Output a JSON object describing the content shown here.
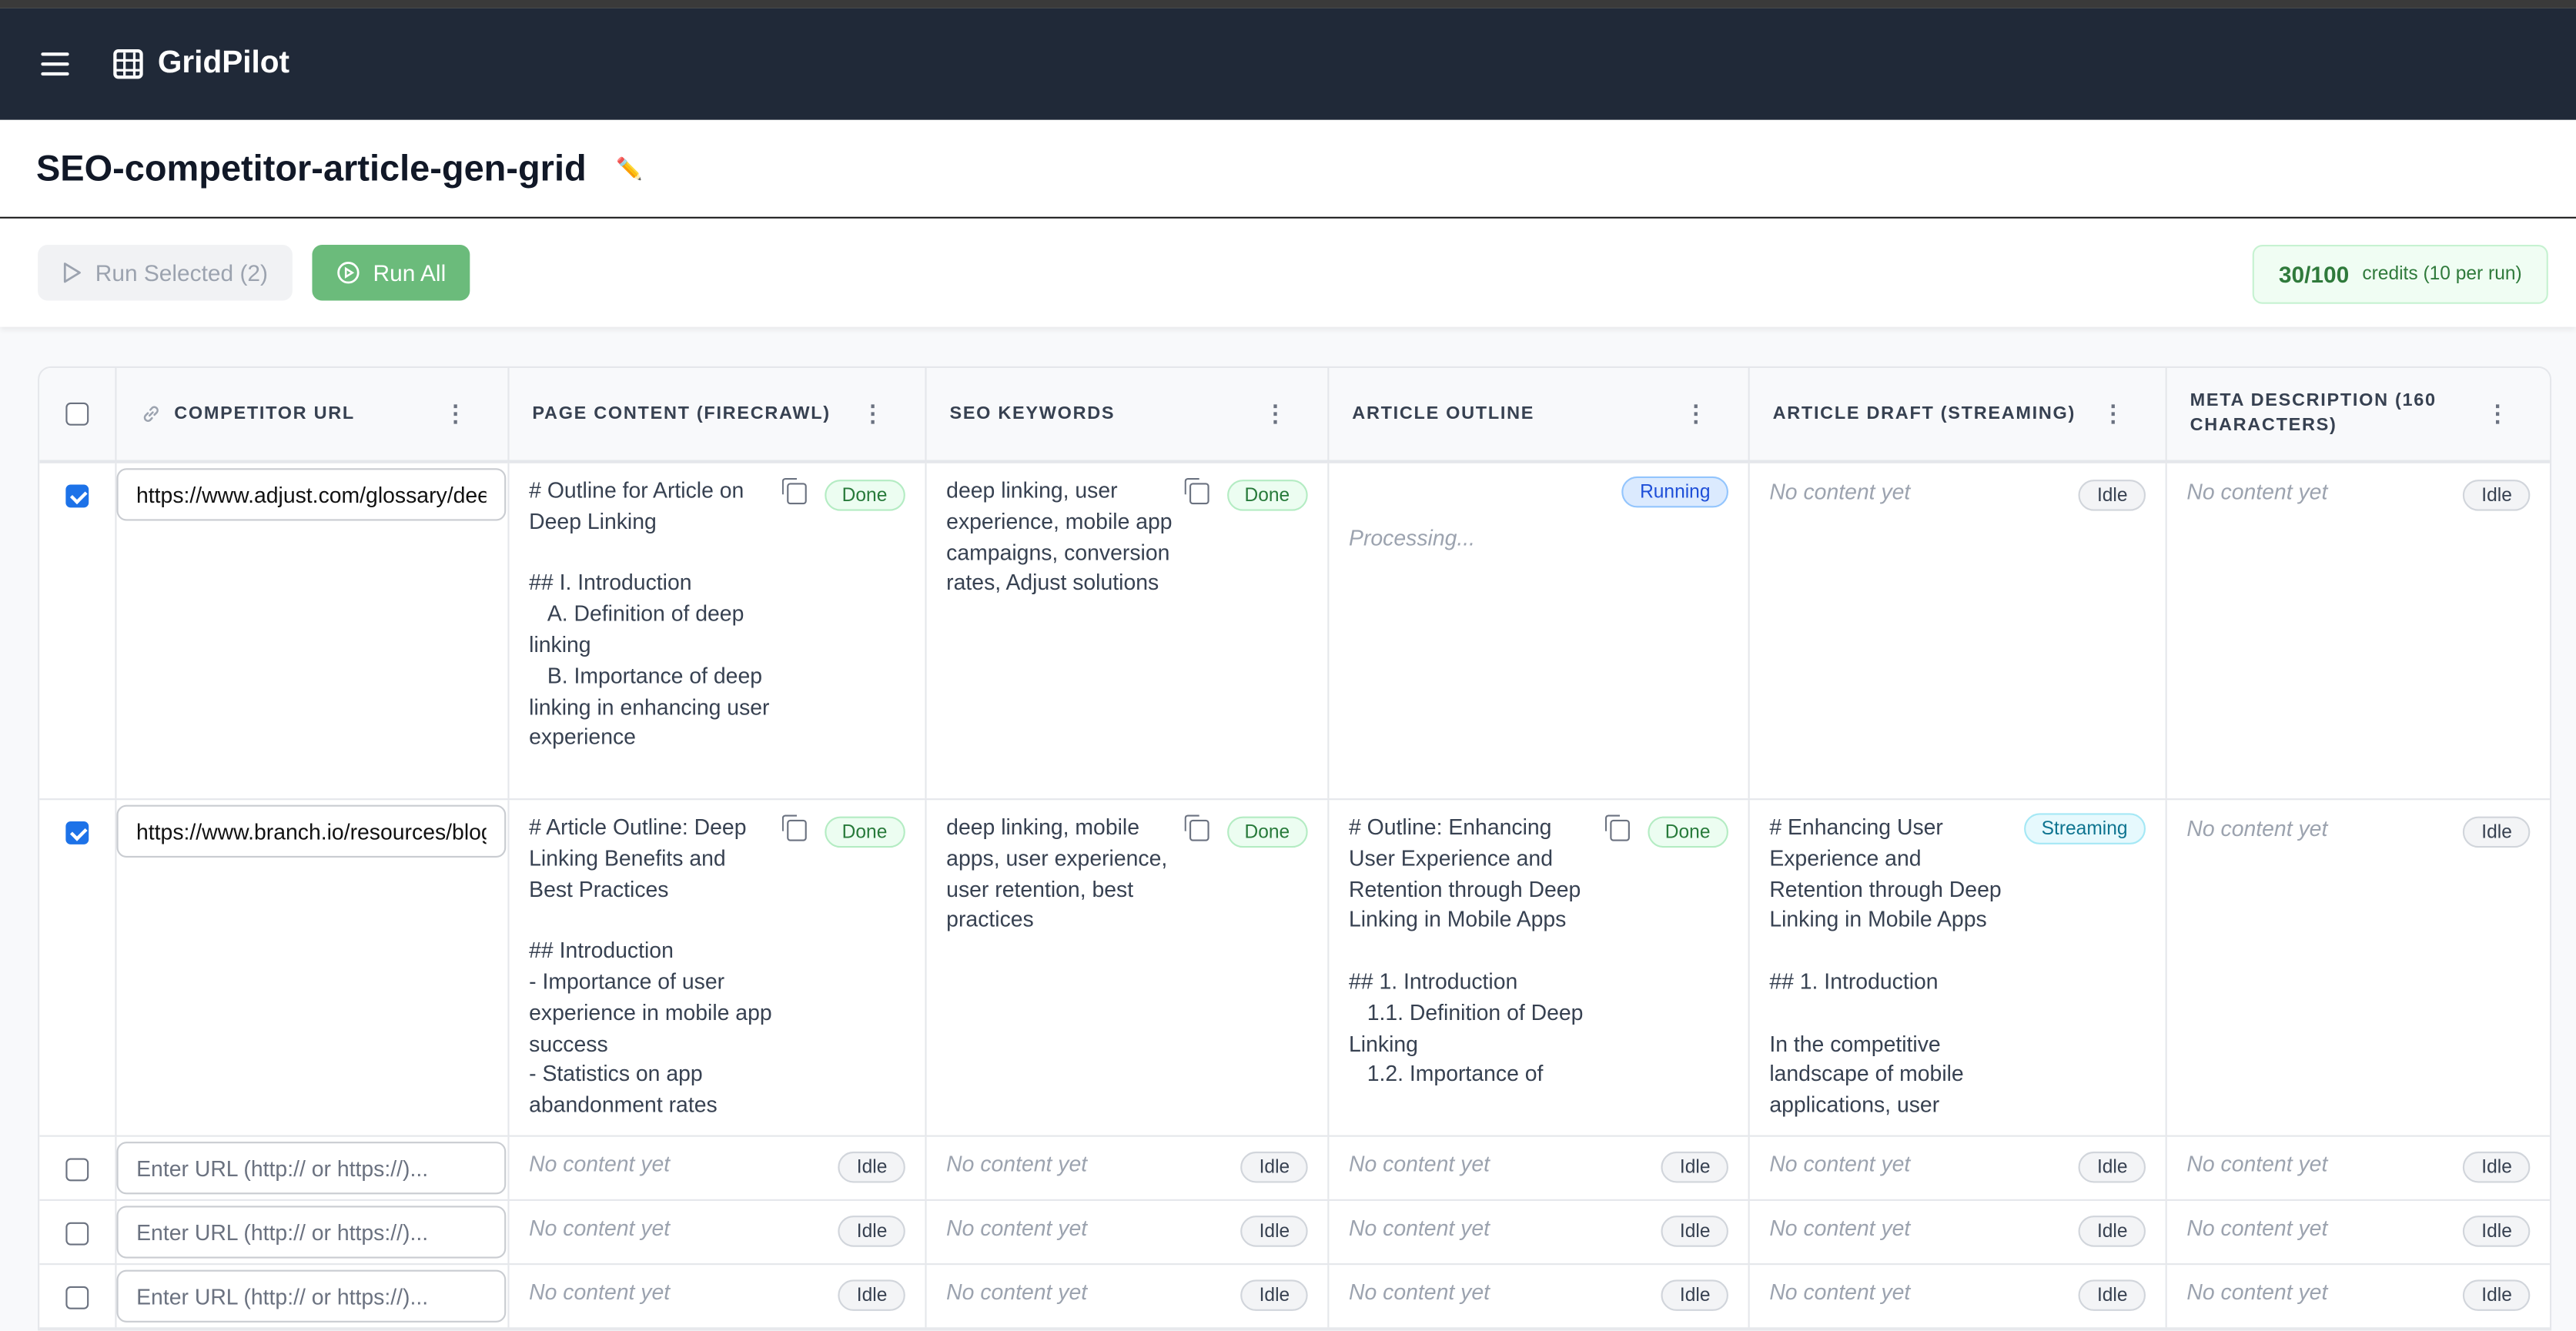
{
  "app": {
    "name": "GridPilot",
    "menu_icon": "hamburger-icon",
    "logo_icon": "grid-icon"
  },
  "page": {
    "title": "SEO-competitor-article-gen-grid",
    "edit_icon": "pencil-icon"
  },
  "toolbar": {
    "run_selected": "Run Selected (2)",
    "run_all": "Run All",
    "credits_used": "30/100",
    "credits_note": "credits (10 per run)"
  },
  "colors": {
    "nav": "#202938",
    "run_all": "#6bbb7b",
    "done": "#277a3a",
    "running": "#1d4ed8",
    "streaming": "#0e7490",
    "checkbox": "#1d72e8"
  },
  "columns": [
    "COMPETITOR URL",
    "PAGE CONTENT (FIRECRAWL)",
    "SEO KEYWORDS",
    "ARTICLE OUTLINE",
    "ARTICLE DRAFT (STREAMING)",
    "META DESCRIPTION (160 CHARACTERS)"
  ],
  "empty_text": "No content yet",
  "url_placeholder": "Enter URL (http:// or https://)...",
  "status": {
    "done": "Done",
    "idle": "Idle",
    "running": "Running",
    "streaming": "Streaming"
  },
  "processing": "Processing...",
  "rows": [
    {
      "selected": true,
      "url": "https://www.adjust.com/glossary/deep-linking/",
      "page_content": "# Outline for Article on Deep Linking\n\n## I. Introduction\n   A. Definition of deep linking\n   B. Importance of deep linking in enhancing user experience",
      "seo_keywords": "deep linking, user experience, mobile app campaigns, conversion rates, Adjust solutions"
    },
    {
      "selected": false,
      "url": "https://www.branch.io/resources/blog/",
      "page_content": "# Article Outline: Deep Linking Benefits and Best Practices\n\n## Introduction\n- Importance of user experience in mobile app success\n- Statistics on app abandonment rates",
      "seo_keywords": "deep linking, mobile apps, user experience, user retention, best practices",
      "outline": "# Outline: Enhancing User Experience and Retention through Deep Linking in Mobile Apps\n\n## 1. Introduction\n   1.1. Definition of Deep Linking\n   1.2. Importance of",
      "draft": "# Enhancing User Experience and Retention through Deep Linking in Mobile Apps\n\n## 1. Introduction\n\nIn the competitive landscape of mobile applications, user"
    }
  ]
}
